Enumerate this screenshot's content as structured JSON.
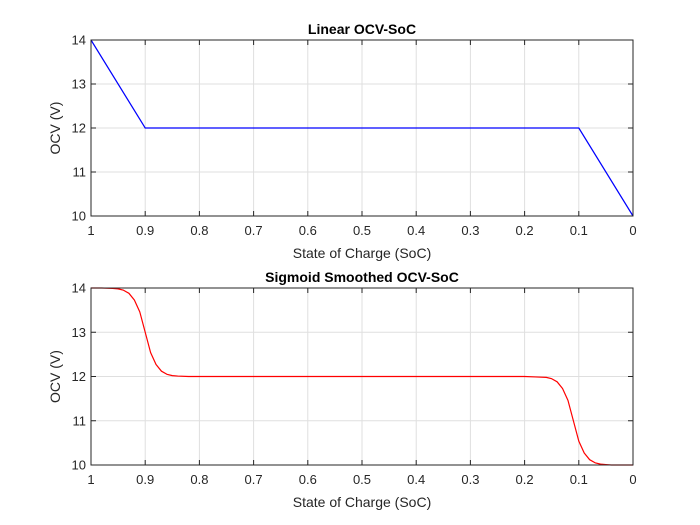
{
  "chart_data": [
    {
      "type": "line",
      "title": "Linear OCV-SoC",
      "xlabel": "State of Charge (SoC)",
      "ylabel": "OCV (V)",
      "xlim": [
        0,
        1
      ],
      "x_reversed": true,
      "ylim": [
        10,
        14
      ],
      "xticks": [
        1,
        0.9,
        0.8,
        0.7,
        0.6,
        0.5,
        0.4,
        0.3,
        0.2,
        0.1,
        0
      ],
      "xtick_labels": [
        "1",
        "0.9",
        "0.8",
        "0.7",
        "0.6",
        "0.5",
        "0.4",
        "0.3",
        "0.2",
        "0.1",
        "0"
      ],
      "yticks": [
        10,
        11,
        12,
        13,
        14
      ],
      "ytick_labels": [
        "10",
        "11",
        "12",
        "13",
        "14"
      ],
      "grid": true,
      "series": [
        {
          "color": "#0000ff",
          "x": [
            1,
            0.9,
            0.1,
            0
          ],
          "y": [
            14,
            12,
            12,
            10
          ]
        }
      ]
    },
    {
      "type": "line",
      "title": "Sigmoid Smoothed OCV-SoC",
      "xlabel": "State of Charge (SoC)",
      "ylabel": "OCV (V)",
      "xlim": [
        0,
        1
      ],
      "x_reversed": true,
      "ylim": [
        10,
        14
      ],
      "xticks": [
        1,
        0.9,
        0.8,
        0.7,
        0.6,
        0.5,
        0.4,
        0.3,
        0.2,
        0.1,
        0
      ],
      "xtick_labels": [
        "1",
        "0.9",
        "0.8",
        "0.7",
        "0.6",
        "0.5",
        "0.4",
        "0.3",
        "0.2",
        "0.1",
        "0"
      ],
      "yticks": [
        10,
        11,
        12,
        13,
        14
      ],
      "ytick_labels": [
        "10",
        "11",
        "12",
        "13",
        "14"
      ],
      "grid": true,
      "series": [
        {
          "color": "#ff0000",
          "x": [
            1,
            0.98,
            0.96,
            0.95,
            0.94,
            0.93,
            0.92,
            0.91,
            0.9,
            0.89,
            0.88,
            0.87,
            0.86,
            0.85,
            0.84,
            0.82,
            0.8,
            0.7,
            0.5,
            0.3,
            0.2,
            0.18,
            0.16,
            0.15,
            0.14,
            0.13,
            0.12,
            0.11,
            0.1,
            0.09,
            0.08,
            0.07,
            0.06,
            0.05,
            0.04,
            0.02,
            0
          ],
          "y": [
            14,
            14,
            13.99,
            13.98,
            13.95,
            13.88,
            13.73,
            13.46,
            13.0,
            12.54,
            12.27,
            12.12,
            12.05,
            12.02,
            12.01,
            12.0,
            12.0,
            12.0,
            12.0,
            12.0,
            12.0,
            11.99,
            11.98,
            11.95,
            11.88,
            11.73,
            11.46,
            11.0,
            10.54,
            10.27,
            10.12,
            10.05,
            10.02,
            10.01,
            10.0,
            10.0,
            10.0
          ]
        }
      ]
    }
  ]
}
